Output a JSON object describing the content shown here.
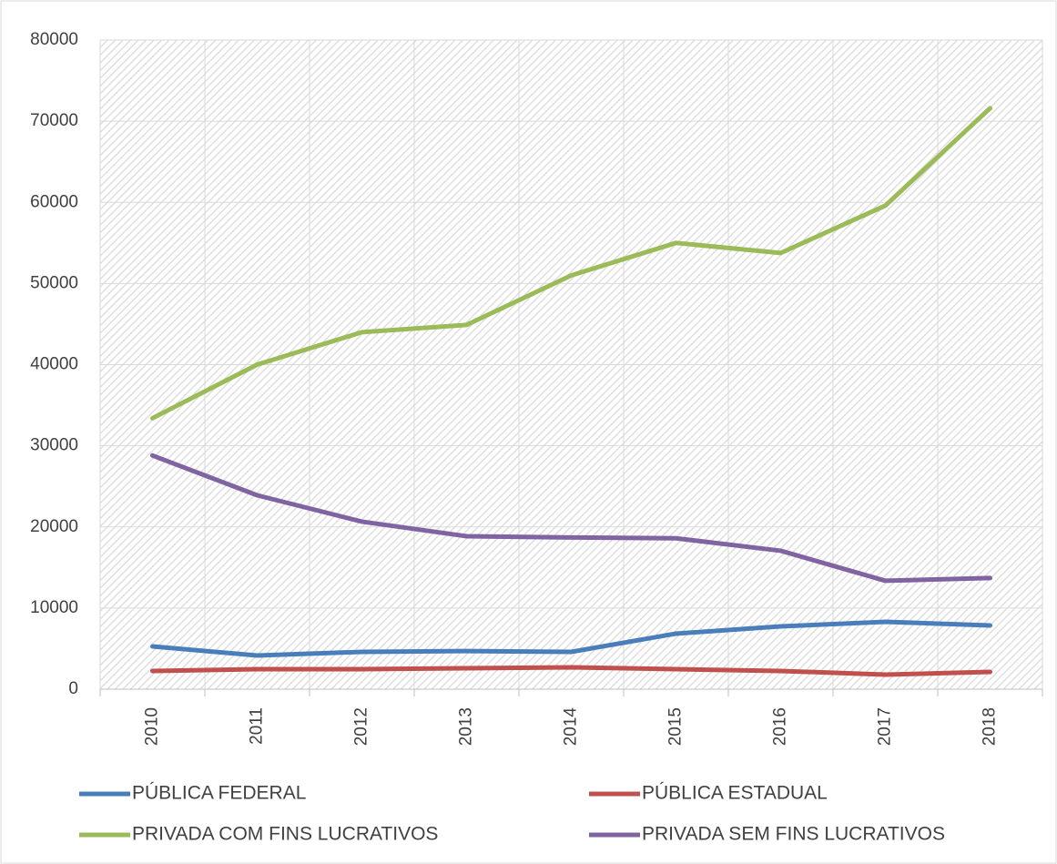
{
  "chart_data": {
    "type": "line",
    "categories": [
      "2010",
      "2011",
      "2012",
      "2013",
      "2014",
      "2015",
      "2016",
      "2017",
      "2018"
    ],
    "series": [
      {
        "name": "PÚBLICA FEDERAL",
        "color": "#4a7ebb",
        "values": [
          5270,
          4150,
          4600,
          4700,
          4600,
          6850,
          7740,
          8300,
          7860
        ]
      },
      {
        "name": "PÚBLICA ESTADUAL",
        "color": "#c0504d",
        "values": [
          2250,
          2470,
          2470,
          2580,
          2690,
          2470,
          2250,
          1800,
          2130
        ]
      },
      {
        "name": "PRIVADA COM FINS LUCRATIVOS",
        "color": "#9bbb59",
        "values": [
          33400,
          40000,
          44000,
          44900,
          51000,
          55000,
          53760,
          59600,
          71600
        ]
      },
      {
        "name": "PRIVADA SEM FINS LUCRATIVOS",
        "color": "#8064a2",
        "values": [
          28800,
          23900,
          20650,
          18850,
          18700,
          18600,
          17060,
          13360,
          13700
        ]
      }
    ],
    "ylim": [
      0,
      80000
    ],
    "yticks": [
      0,
      10000,
      20000,
      30000,
      40000,
      50000,
      60000,
      70000,
      80000
    ],
    "grid": true,
    "legend": "bottom"
  }
}
